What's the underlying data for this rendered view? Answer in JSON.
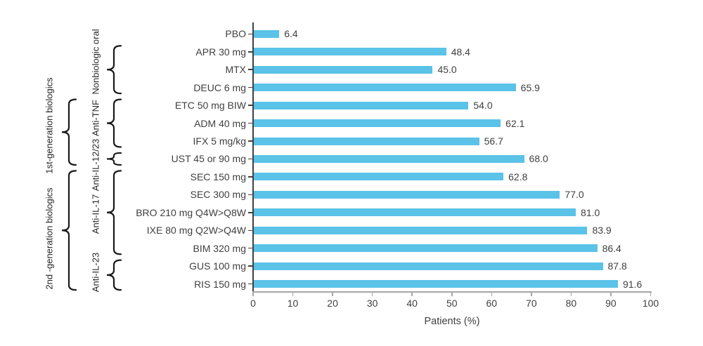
{
  "chart_data": {
    "type": "bar",
    "orientation": "horizontal",
    "title": "",
    "xlabel": "Patients (%)",
    "ylabel": "",
    "xlim": [
      0,
      100
    ],
    "xticks": [
      0,
      10,
      20,
      30,
      40,
      50,
      60,
      70,
      80,
      90,
      100
    ],
    "grid": false,
    "legend": false,
    "categories": [
      "PBO",
      "APR 30 mg",
      "MTX",
      "DEUC 6 mg",
      "ETC 50 mg BIW",
      "ADM 40 mg",
      "IFX 5 mg/kg",
      "UST 45 or 90 mg",
      "SEC 150 mg",
      "SEC 300 mg",
      "BRO 210 mg Q4W>Q8W",
      "IXE 80 mg Q2W>Q4W",
      "BIM 320 mg",
      "GUS 100 mg",
      "RIS 150 mg"
    ],
    "values": [
      6.4,
      48.4,
      45.0,
      65.9,
      54.0,
      62.1,
      56.7,
      68.0,
      62.8,
      77.0,
      81.0,
      83.9,
      86.4,
      87.8,
      91.6
    ],
    "value_labels": [
      "6.4",
      "48.4",
      "45.0",
      "65.9",
      "54.0",
      "62.1",
      "56.7",
      "68.0",
      "62.8",
      "77.0",
      "81.0",
      "83.9",
      "86.4",
      "87.8",
      "91.6"
    ],
    "groups": [
      {
        "label": "Nonbiologic oral",
        "first": 1,
        "last": 3,
        "level": 2
      },
      {
        "label": "Anti-TNF",
        "first": 4,
        "last": 6,
        "level": 2
      },
      {
        "label": "Anti-IL-12/23",
        "first": 7,
        "last": 7,
        "level": 2
      },
      {
        "label": "Anti-IL-17",
        "first": 8,
        "last": 12,
        "level": 2
      },
      {
        "label": "Anti-IL-23",
        "first": 13,
        "last": 14,
        "level": 2
      },
      {
        "label": "1st-generation biologics",
        "first": 4,
        "last": 7,
        "level": 1
      },
      {
        "label": "2nd -generation biologics",
        "first": 8,
        "last": 14,
        "level": 1
      }
    ],
    "colors": {
      "bar": "#5BC2E8",
      "y_axis": "#404040",
      "x_axis": "#A6A6A6",
      "text": "#404040",
      "annotation": "#1a1a1a"
    }
  }
}
